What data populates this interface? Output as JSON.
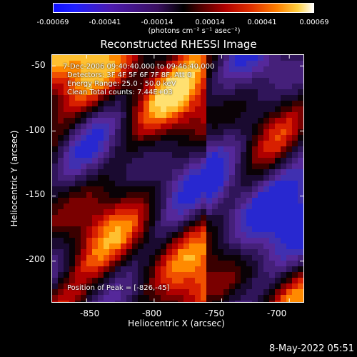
{
  "colorbar": {
    "ticks": [
      "-0.00069",
      "-0.00041",
      "-0.00014",
      "0.00014",
      "0.00041",
      "0.00069"
    ],
    "units": "(photons cm⁻² s⁻¹ asec⁻²)"
  },
  "chart_data": {
    "type": "heatmap",
    "title": "Reconstructed RHESSI Image",
    "xlabel": "Heliocentric X (arcsec)",
    "ylabel": "Heliocentric Y (arcsec)",
    "xlim": [
      -876,
      -689
    ],
    "ylim": [
      -232,
      -41
    ],
    "x_ticks": [
      "-850",
      "-800",
      "-750",
      "-700"
    ],
    "y_ticks": [
      "-50",
      "-100",
      "-150",
      "-200"
    ],
    "value_range": [
      -0.00069,
      0.00069
    ],
    "peak": [
      -826,
      -45
    ],
    "annotations": {
      "time_range": "7-Dec-2006 09:40:40.000 to 09:46:40.000",
      "detectors": "Detectors: 3F 4F 5F 6F 7F 8F, Att 0",
      "energy": "Energy Range: 25.0 - 50.0 keV",
      "clean": "Clean    Total counts: 7.44E+03",
      "peak_text": "Position of Peak = [-826,-45]"
    }
  },
  "footer": {
    "date": "8-May-2022 05:51"
  }
}
